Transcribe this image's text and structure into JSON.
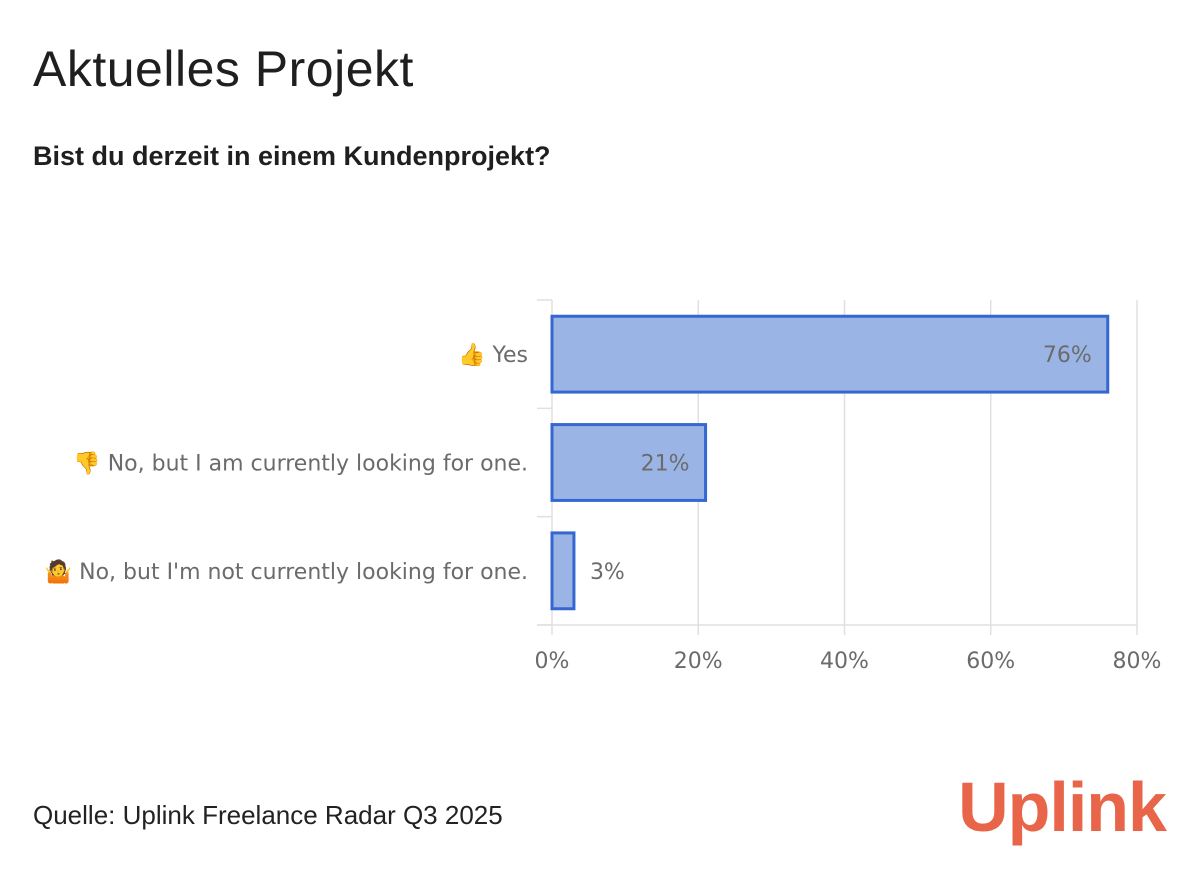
{
  "title": "Aktuelles Projekt",
  "subtitle": "Bist du derzeit in einem Kundenprojekt?",
  "source": "Quelle: Uplink Freelance Radar Q3 2025",
  "brand": "Uplink",
  "colors": {
    "bar_fill": "#9bb4e6",
    "bar_stroke": "#3467cf",
    "brand": "#e8654a",
    "grid": "#e0e0e0",
    "text_muted": "#6b6b6b"
  },
  "chart_data": {
    "type": "bar",
    "orientation": "horizontal",
    "categories": [
      "👍 Yes",
      "👎 No, but I am currently looking for one.",
      "🤷 No, but I'm not currently looking for one."
    ],
    "values": [
      76,
      21,
      3
    ],
    "value_labels": [
      "76%",
      "21%",
      "3%"
    ],
    "xlim": [
      0,
      80
    ],
    "xticks": [
      0,
      20,
      40,
      60,
      80
    ],
    "xtick_labels": [
      "0%",
      "20%",
      "40%",
      "60%",
      "80%"
    ],
    "grid": true,
    "legend": false
  }
}
